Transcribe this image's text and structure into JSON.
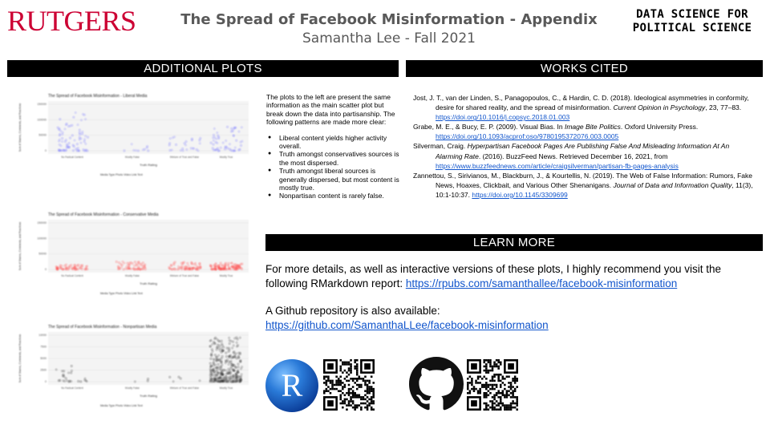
{
  "header": {
    "logo_text": "RUTGERS",
    "title": "The Spread of Facebook Misinformation - Appendix",
    "subtitle": "Samantha Lee - Fall 2021",
    "dsps_line1": "Data Science for",
    "dsps_line2": "Political Science"
  },
  "sections": {
    "additional_plots": "ADDITIONAL PLOTS",
    "works_cited": "WORKS CITED",
    "learn_more": "LEARN MORE"
  },
  "plots": [
    {
      "title": "The Spread of Facebook Misinformation - Liberal Media",
      "ylabel": "Sum of Shares, Comments, and Reactions",
      "xlabel": "Truth Rating",
      "yticks": [
        "150000",
        "100000",
        "50000",
        "0"
      ],
      "categories": [
        "No Factual Content",
        "Mostly False",
        "Mixture of True and False",
        "Mostly True"
      ],
      "legend_title": "Media Type",
      "legend_items": [
        "Photo",
        "Video",
        "Link",
        "Text"
      ],
      "color": "#6b6bff"
    },
    {
      "title": "The Spread of Facebook Misinformation - Conservative Media",
      "ylabel": "Sum of Shares, Comments, and Reactions",
      "xlabel": "Truth Rating",
      "yticks": [
        "150000",
        "100000",
        "50000",
        "0"
      ],
      "categories": [
        "No Factual Content",
        "Mostly False",
        "Mixture of True and False",
        "Mostly True"
      ],
      "legend_title": "Media Type",
      "legend_items": [
        "Photo",
        "Video",
        "Link",
        "Text"
      ],
      "color": "#ff4040"
    },
    {
      "title": "The Spread of Facebook Misinformation - Nonpartisan Media",
      "ylabel": "Sum of Shares, Comments, and Reactions",
      "xlabel": "Truth Rating",
      "yticks": [
        "10000",
        "7500",
        "5000",
        "2500",
        "0"
      ],
      "categories": [
        "No Factual Content",
        "Mostly False",
        "Mixture of True and False",
        "Mostly True"
      ],
      "legend_title": "Media Type",
      "legend_items": [
        "Photo",
        "Video",
        "Link",
        "Text"
      ],
      "color": "#222222"
    }
  ],
  "description": {
    "intro": "The plots to the left are present the same information as the main scatter plot but break down the data into partisanship. The following patterns  are made more clear:",
    "bullets": [
      "Liberal content yields higher activity overall.",
      "Truth amongst conservatives sources is the most dispersed.",
      "Truth amongst liberal sources  is generally dispersed, but most content is mostly true.",
      "Nonpartisan content is rarely false."
    ]
  },
  "references": [
    {
      "pre": "Jost, J. T., van der Linden, S., Panagopoulos, C., & Hardin, C. D. (2018). Ideological asymmetries in conformity, desire for shared reality, and the spread of misinformation. ",
      "italic": "Current Opinion in Psychology",
      "post": ", 23, 77–83. ",
      "link": "https://doi.org/10.1016/j.copsyc.2018.01.003"
    },
    {
      "pre": "Grabe, M. E., & Bucy, E. P. (2009). Visual Bias. In ",
      "italic": "Image Bite Politics",
      "post": ". Oxford University Press. ",
      "link": "https://doi.org/10.1093/acprof:oso/9780195372076.003.0005"
    },
    {
      "pre": "Silverman, Craig. ",
      "italic": "Hyperpartisan Facebook Pages Are Publishing False And Misleading Information At An Alarming Rate",
      "post": ". (2016). BuzzFeed News. Retrieved December 16, 2021, from ",
      "link": "https://www.buzzfeednews.com/article/craigsilverman/partisan-fb-pages-analysis"
    },
    {
      "pre": "Zannettou, S., Sirivianos, M., Blackburn, J., & Kourtellis, N. (2019). The Web of False Information: Rumors, Fake News, Hoaxes, Clickbait, and Various Other Shenanigans. ",
      "italic": "Journal of Data and Information Quality",
      "post": ", 11(3), 10:1-10:37. ",
      "link": "https://doi.org/10.1145/3309699"
    }
  ],
  "learn": {
    "para1": "For more details, as well as interactive versions of these plots, I highly recommend you visit the following RMarkdown report: ",
    "link1": "https://rpubs.com/samanthallee/facebook-misinformation",
    "para2": "A Github repository is also available:",
    "link2": "https://github.com/SamanthaLLee/facebook-misinformation",
    "r_logo_text": "R"
  },
  "icons": [
    "r-logo-icon",
    "qr-code-icon",
    "github-logo-icon"
  ]
}
